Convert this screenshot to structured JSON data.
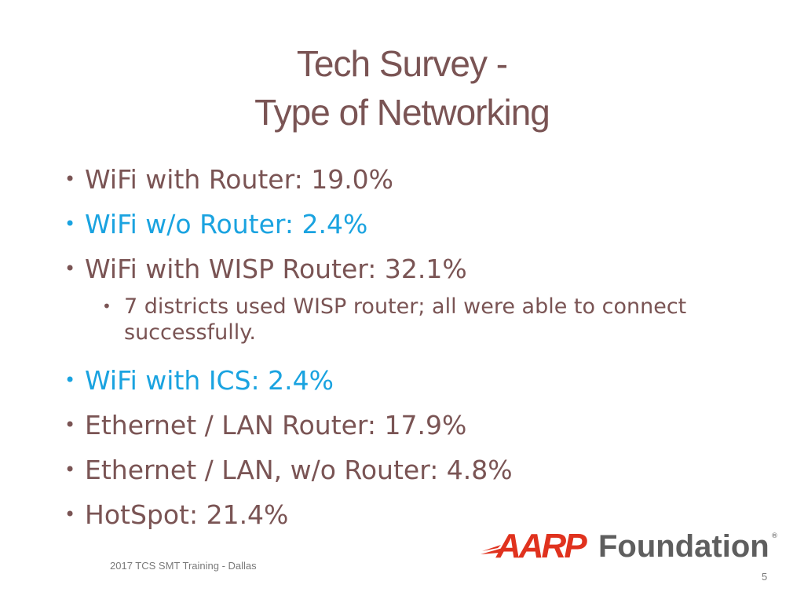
{
  "slide": {
    "title_line1": "Tech Survey -",
    "title_line2": "Type of Networking",
    "bullet_glyph": "•",
    "bullets": [
      {
        "text": "WiFi with Router: 19.0%"
      },
      {
        "text": "WiFi w/o Router: 2.4%"
      },
      {
        "text": "WiFi with WISP Router: 32.1%"
      },
      {
        "text": "WiFi with ICS: 2.4%"
      },
      {
        "text": "Ethernet / LAN Router: 17.9%"
      },
      {
        "text": "Ethernet / LAN, w/o Router: 4.8%"
      },
      {
        "text": "HotSpot: 21.4%"
      }
    ],
    "sub_bullet": "7 districts used WISP router; all were able to connect successfully.",
    "footer": "2017 TCS SMT Training - Dallas",
    "page_number": "5",
    "logo": {
      "brand": "AARP",
      "word": "Foundation",
      "reg": "®"
    }
  },
  "colors": {
    "text": "#7a5454",
    "accent": "#1aa3e0",
    "logo_red": "#e0321e",
    "logo_gray": "#5e5e5e"
  }
}
